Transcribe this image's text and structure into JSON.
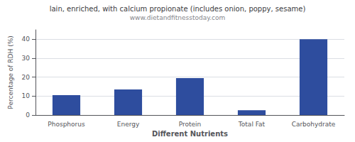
{
  "chart_data": {
    "type": "bar",
    "title": "lain, enriched, with calcium propionate (includes onion, poppy, sesame)",
    "subtitle": "www.dietandfitnesstoday.com",
    "categories": [
      "Phosphorus",
      "Energy",
      "Protein",
      "Total Fat",
      "Carbohydrate"
    ],
    "values": [
      10.5,
      13.5,
      19.5,
      2.5,
      40.0
    ],
    "color": "#2e4d9e",
    "xlabel": "Different Nutrients",
    "ylabel": "Percentage of RDH (%)",
    "ylim": [
      0,
      45
    ],
    "yticks": [
      0,
      10,
      20,
      30,
      40
    ],
    "grid": true
  }
}
